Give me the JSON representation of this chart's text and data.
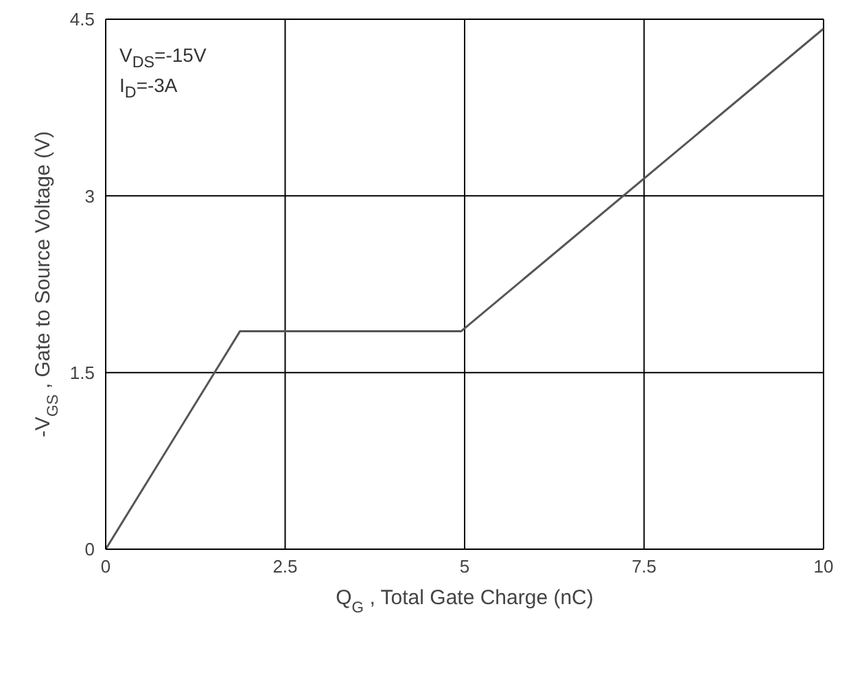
{
  "chart_data": {
    "type": "line",
    "xlabel": "Q$_{G}$ , Total Gate Charge (nC)",
    "ylabel": "-V$_{GS}$ , Gate to Source Voltage (V)",
    "annotations": [
      "V$_{DS}$=-15V",
      "I$_{D}$=-3A"
    ],
    "x": [
      0,
      1.87,
      4.95,
      10
    ],
    "series": [
      {
        "color": "#555555",
        "values": [
          0,
          1.85,
          1.85,
          4.42
        ]
      }
    ],
    "xlim": [
      0,
      10
    ],
    "xticks": [
      0,
      2.5,
      5,
      7.5,
      10
    ],
    "ylim": [
      0,
      4.5
    ],
    "yticks": [
      0,
      1.5,
      3,
      4.5
    ],
    "grid": true,
    "marker": "none",
    "line_style": "solid"
  }
}
